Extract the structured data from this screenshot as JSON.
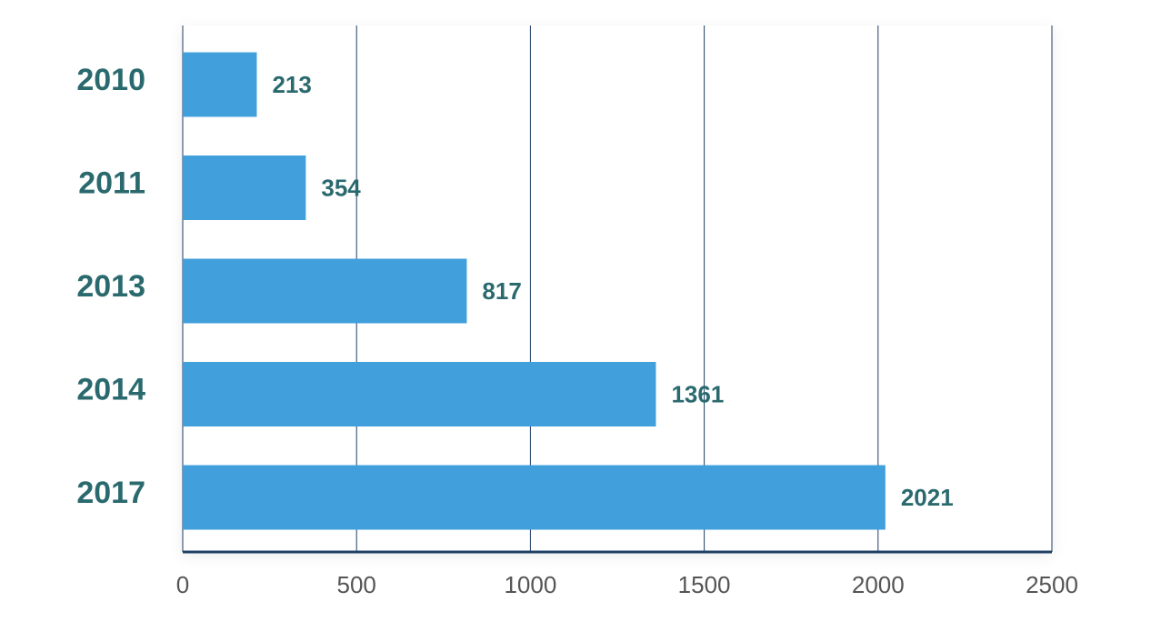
{
  "chart_data": {
    "type": "bar",
    "orientation": "horizontal",
    "categories": [
      "2010",
      "2011",
      "2013",
      "2014",
      "2017"
    ],
    "values": [
      213,
      354,
      817,
      1361,
      2021
    ],
    "data_labels": [
      "213",
      "354",
      "817",
      "1361",
      "2021"
    ],
    "xlim": [
      0,
      2500
    ],
    "x_ticks": [
      0,
      500,
      1000,
      1500,
      2000,
      2500
    ],
    "x_tick_labels": [
      "0",
      "500",
      "1000",
      "1500",
      "2000",
      "2500"
    ],
    "grid": true,
    "legend": "none",
    "colors": {
      "bar": "#419fdc",
      "category_text": "#2a6a6e",
      "value_text": "#2a6a6e",
      "tick_text": "#555555",
      "grid": "#1f3f66",
      "axis": "#1f3f66"
    }
  }
}
